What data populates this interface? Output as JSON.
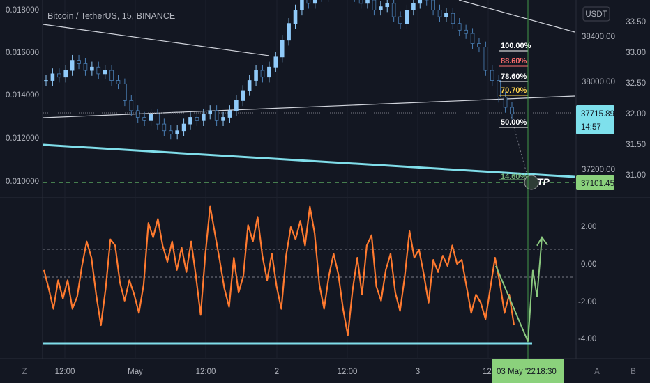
{
  "chart_data": [
    {
      "type": "line",
      "panel": "price",
      "title": "Bitcoin / TetherUS, 15, BINANCE",
      "currency_label": "USDT",
      "left_axis": {
        "ticks": [
          "0.018000",
          "0.016000",
          "0.014000",
          "0.012000",
          "0.010000"
        ],
        "range": [
          0.0096,
          0.0183
        ]
      },
      "mid_axis": {
        "ticks": [
          "38400.00",
          "38000.00",
          "37200.00"
        ],
        "range": [
          36925,
          38820
        ]
      },
      "right_axis": {
        "ticks": [
          "33.50",
          "33.00",
          "32.50",
          "32.00",
          "31.50",
          "31.00"
        ],
        "range": [
          30.7,
          33.65
        ]
      },
      "current_price": "37715.89",
      "countdown": "14:57",
      "tp_price": "37101.45",
      "tp_label": "TP",
      "fib_levels": [
        {
          "label": "100.00%",
          "color": "#ffffff"
        },
        {
          "label": "88.60%",
          "color": "#ff6f6f"
        },
        {
          "label": "78.60%",
          "color": "#ffffff"
        },
        {
          "label": "70.70%",
          "color": "#ffd54f"
        },
        {
          "label": "50.00%",
          "color": "#ffffff"
        },
        {
          "label": "14.60%",
          "color": "#81c784"
        }
      ],
      "series": [
        {
          "values": [
            32.45,
            32.55,
            32.5,
            32.6,
            32.75,
            32.7,
            32.6,
            32.65,
            32.55,
            32.6,
            32.45,
            32.4,
            32.15,
            32.0,
            31.9,
            31.85,
            31.95,
            31.8,
            31.7,
            31.65,
            31.7,
            31.8,
            31.9,
            31.85,
            31.95,
            32.0,
            31.85,
            31.9,
            32.0,
            32.15,
            32.3,
            32.45,
            32.6,
            32.5,
            32.65,
            32.8,
            33.05,
            33.3,
            33.5,
            33.7,
            33.6,
            33.8,
            33.7,
            33.85,
            33.75,
            33.9,
            33.8,
            33.7,
            33.6,
            33.65,
            33.5,
            33.55,
            33.6,
            33.4,
            33.3,
            33.5,
            33.6,
            33.7,
            33.65,
            33.5,
            33.4,
            33.45,
            33.3,
            33.2,
            33.15,
            33.0,
            32.95,
            32.6,
            32.45,
            32.2,
            32.05,
            31.95
          ]
        }
      ]
    },
    {
      "type": "line",
      "panel": "oscillator",
      "axis": {
        "ticks": [
          "2.00",
          "0.00",
          "-2.00",
          "-4.00"
        ],
        "range": [
          -4.6,
          3.2
        ]
      },
      "reference_levels": [
        0.8,
        -0.7
      ],
      "support_level": -4.25,
      "series": [
        {
          "values": [
            -0.3,
            -1.2,
            -2.2,
            -0.8,
            -1.7,
            -0.8,
            -2.2,
            -1.6,
            -0.1,
            1.1,
            0.3,
            -1.5,
            -3.0,
            -1.2,
            1.2,
            0.9,
            -0.9,
            -1.8,
            -0.8,
            -1.5,
            -2.4,
            -1.0,
            2.0,
            1.3,
            2.2,
            0.9,
            0.1,
            1.1,
            -0.3,
            0.8,
            -0.4,
            1.1,
            -0.6,
            -2.5,
            0.5,
            2.8,
            1.5,
            0.2,
            -1.2,
            -2.1,
            0.3,
            -1.4,
            -0.6,
            1.9,
            1.1,
            2.3,
            0.4,
            -0.8,
            0.5,
            -1.1,
            -2.2,
            0.4,
            1.8,
            1.2,
            2.1,
            0.9,
            2.8,
            1.5,
            -1.0,
            -2.2,
            -0.6,
            0.5,
            -0.5,
            -2.2,
            -3.5,
            -1.3,
            0.3,
            -1.5,
            0.9,
            1.4,
            -1.1,
            -1.8,
            -0.3,
            0.5,
            -1.4,
            -2.3,
            -0.6,
            1.6,
            0.3,
            0.7,
            -0.5,
            -1.9,
            0.2,
            -0.4,
            0.4,
            -0.1,
            0.9,
            0.0,
            0.2,
            -1.1,
            -2.4,
            -1.5,
            -1.9,
            -2.7,
            -1.2,
            0.3,
            -0.9,
            -2.4,
            -1.5,
            -3.0
          ]
        }
      ],
      "projection": [
        -0.1,
        -3.8,
        -0.3,
        -1.6,
        1.3
      ]
    }
  ],
  "time_axis": {
    "labels": [
      "12:00",
      "May",
      "12:00",
      "2",
      "12:00",
      "3",
      "12:"
    ],
    "highlight": "03 May '22",
    "highlight_time": "18:30"
  },
  "bottom_buttons": {
    "left": "Z",
    "right_a": "A",
    "right_b": "B"
  }
}
